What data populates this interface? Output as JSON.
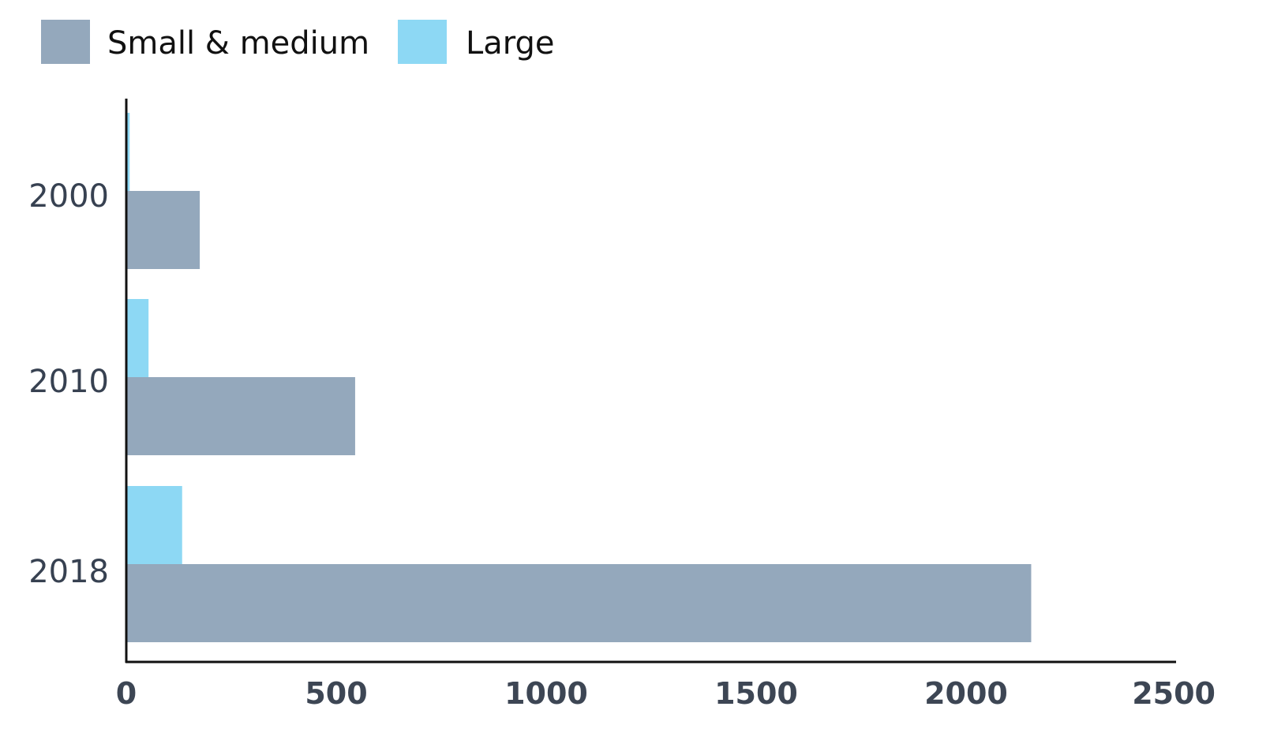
{
  "chart_data": {
    "type": "bar",
    "orientation": "horizontal",
    "categories": [
      "2000",
      "2010",
      "2018"
    ],
    "series": [
      {
        "name": "Small & medium",
        "values": [
          175,
          545,
          2155
        ],
        "color": "#94a8bc"
      },
      {
        "name": "Large",
        "values": [
          8,
          53,
          133
        ],
        "color": "#8dd8f4"
      }
    ],
    "xlim": [
      0,
      2500
    ],
    "xticks": [
      "0",
      "500",
      "1000",
      "1500",
      "2000",
      "2500"
    ],
    "legend_position": "top-left",
    "grid": false,
    "title": "",
    "xlabel": "",
    "ylabel": ""
  }
}
